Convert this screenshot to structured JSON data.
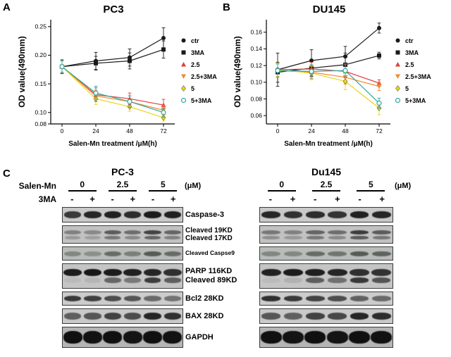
{
  "chart_data": [
    {
      "type": "line",
      "title": "PC3",
      "xlabel": "Salen-Mn treatment /μM(h)",
      "ylabel": "OD value(490mm)",
      "x": [
        0,
        24,
        48,
        72
      ],
      "xticks": [
        0,
        24,
        48,
        72
      ],
      "yticks": [
        0.08,
        0.1,
        0.15,
        0.2,
        0.25
      ],
      "xlim": [
        -8,
        80
      ],
      "ylim": [
        0.08,
        0.262
      ],
      "grid": false,
      "legend_position": "right",
      "series": [
        {
          "name": "ctr",
          "marker": "circle",
          "color": "#1a1a1a",
          "values": [
            0.18,
            0.19,
            0.196,
            0.23
          ],
          "err": [
            0.012,
            0.015,
            0.015,
            0.018
          ]
        },
        {
          "name": "3MA",
          "marker": "square",
          "color": "#1a1a1a",
          "values": [
            0.18,
            0.186,
            0.19,
            0.21
          ],
          "err": [
            0.01,
            0.012,
            0.014,
            0.015
          ]
        },
        {
          "name": "2.5",
          "marker": "triangle-up",
          "color": "#e23b3b",
          "values": [
            0.18,
            0.131,
            0.124,
            0.113
          ],
          "err": [
            0.01,
            0.012,
            0.01,
            0.01
          ]
        },
        {
          "name": "2.5+3MA",
          "marker": "triangle-down",
          "color": "#f08a2c",
          "values": [
            0.18,
            0.129,
            0.119,
            0.104
          ],
          "err": [
            0.01,
            0.01,
            0.01,
            0.008
          ]
        },
        {
          "name": "5",
          "marker": "diamond",
          "color": "#e8d51e",
          "values": [
            0.18,
            0.124,
            0.11,
            0.091
          ],
          "err": [
            0.01,
            0.01,
            0.008,
            0.006
          ]
        },
        {
          "name": "5+3MA",
          "marker": "circle-open",
          "color": "#2fa8a0",
          "values": [
            0.18,
            0.134,
            0.119,
            0.1
          ],
          "err": [
            0.01,
            0.012,
            0.01,
            0.008
          ]
        }
      ]
    },
    {
      "type": "line",
      "title": "DU145",
      "xlabel": "Salen-Mn treatment /μM(h)",
      "ylabel": "OD value(490mm)",
      "x": [
        0,
        24,
        48,
        72
      ],
      "xticks": [
        0,
        24,
        48,
        72
      ],
      "yticks": [
        0.06,
        0.08,
        0.1,
        0.12,
        0.14,
        0.16
      ],
      "xlim": [
        -8,
        80
      ],
      "ylim": [
        0.05,
        0.175
      ],
      "grid": false,
      "legend_position": "right",
      "series": [
        {
          "name": "ctr",
          "marker": "circle",
          "color": "#1a1a1a",
          "values": [
            0.115,
            0.126,
            0.131,
            0.165
          ],
          "err": [
            0.02,
            0.013,
            0.012,
            0.006
          ]
        },
        {
          "name": "3MA",
          "marker": "square",
          "color": "#1a1a1a",
          "values": [
            0.112,
            0.117,
            0.121,
            0.132
          ],
          "err": [
            0.012,
            0.01,
            0.014,
            0.004
          ]
        },
        {
          "name": "2.5",
          "marker": "triangle-up",
          "color": "#e23b3b",
          "values": [
            0.115,
            0.116,
            0.113,
            0.099
          ],
          "err": [
            0.008,
            0.008,
            0.008,
            0.004
          ]
        },
        {
          "name": "2.5+3MA",
          "marker": "triangle-down",
          "color": "#f08a2c",
          "values": [
            0.114,
            0.112,
            0.106,
            0.095
          ],
          "err": [
            0.008,
            0.008,
            0.008,
            0.005
          ]
        },
        {
          "name": "5",
          "marker": "diamond",
          "color": "#e8d51e",
          "values": [
            0.115,
            0.111,
            0.101,
            0.069
          ],
          "err": [
            0.008,
            0.008,
            0.01,
            0.008
          ]
        },
        {
          "name": "5+3MA",
          "marker": "circle-open",
          "color": "#2fa8a0",
          "values": [
            0.114,
            0.113,
            0.114,
            0.075
          ],
          "err": [
            0.008,
            0.008,
            0.008,
            0.006
          ]
        }
      ]
    }
  ],
  "panel_a": {
    "marker": "A"
  },
  "panel_b": {
    "marker": "B"
  },
  "panel_c": {
    "marker": "C",
    "left_group_title": "PC-3",
    "right_group_title": "Du145",
    "salen_label": "Salen-Mn",
    "doses": [
      "0",
      "2.5",
      "5"
    ],
    "unit_label": "(μM)",
    "inhibitor_label": "3MA",
    "lane_signs": [
      "-",
      "+",
      "-",
      "+",
      "-",
      "+"
    ],
    "rows": [
      {
        "labels": [
          "Caspase-3"
        ],
        "label_size": "normal",
        "strip_height": 22,
        "bg": "#c9c9c9",
        "bands": [
          {
            "h": 0.5,
            "w": 0.86,
            "left": [
              0.75,
              0.85,
              0.88,
              0.82,
              0.9,
              0.88
            ],
            "right": [
              0.85,
              0.8,
              0.82,
              0.78,
              0.88,
              0.85
            ]
          }
        ]
      },
      {
        "labels": [
          "Cleaved 19KD",
          "Cleaved 17KD"
        ],
        "label_size": "small",
        "strip_height": 26,
        "bg": "#c2c2c2",
        "bands": [
          {
            "h": 0.26,
            "w": 0.86,
            "left": [
              0.35,
              0.3,
              0.55,
              0.45,
              0.68,
              0.5
            ],
            "right": [
              0.4,
              0.35,
              0.5,
              0.45,
              0.72,
              0.55
            ]
          },
          {
            "h": 0.2,
            "w": 0.8,
            "left": [
              0.22,
              0.18,
              0.4,
              0.3,
              0.5,
              0.35
            ],
            "right": [
              0.28,
              0.22,
              0.4,
              0.3,
              0.55,
              0.4
            ]
          }
        ]
      },
      {
        "labels": [
          "Cleaved Caspse9"
        ],
        "label_size": "xsmall",
        "strip_height": 20,
        "bg": "#b9bdb9",
        "bands": [
          {
            "h": 0.4,
            "w": 0.85,
            "left": [
              0.3,
              0.25,
              0.45,
              0.35,
              0.55,
              0.45
            ],
            "right": [
              0.3,
              0.3,
              0.45,
              0.4,
              0.55,
              0.5
            ]
          }
        ]
      },
      {
        "labels": [
          "PARP 116KD",
          "Cleaved 89KD"
        ],
        "label_size": "normal",
        "strip_height": 36,
        "bg": "#c5c5c5",
        "bands": [
          {
            "h": 0.3,
            "w": 0.9,
            "left": [
              0.9,
              0.92,
              0.9,
              0.88,
              0.85,
              0.8
            ],
            "right": [
              0.88,
              0.9,
              0.88,
              0.85,
              0.8,
              0.78
            ]
          },
          {
            "h": 0.22,
            "w": 0.84,
            "left": [
              0.05,
              0.08,
              0.5,
              0.4,
              0.72,
              0.55
            ],
            "right": [
              0.05,
              0.1,
              0.55,
              0.45,
              0.75,
              0.6
            ]
          }
        ]
      },
      {
        "labels": [
          "Bcl2 28KD"
        ],
        "label_size": "normal",
        "strip_height": 20,
        "bg": "#cccccc",
        "bands": [
          {
            "h": 0.45,
            "w": 0.86,
            "left": [
              0.75,
              0.72,
              0.65,
              0.6,
              0.5,
              0.45
            ],
            "right": [
              0.8,
              0.75,
              0.7,
              0.65,
              0.55,
              0.5
            ]
          }
        ]
      },
      {
        "labels": [
          "BAX 28KD"
        ],
        "label_size": "normal",
        "strip_height": 22,
        "bg": "#c9c9c9",
        "bands": [
          {
            "h": 0.5,
            "w": 0.86,
            "left": [
              0.55,
              0.6,
              0.7,
              0.65,
              0.85,
              0.8
            ],
            "right": [
              0.6,
              0.55,
              0.7,
              0.68,
              0.85,
              0.82
            ]
          }
        ]
      },
      {
        "labels": [
          "GAPDH"
        ],
        "label_size": "normal",
        "strip_height": 30,
        "bg": "#b5b5b5",
        "bands": [
          {
            "h": 0.62,
            "w": 0.95,
            "left": [
              0.96,
              0.95,
              0.96,
              0.94,
              0.96,
              0.95
            ],
            "right": [
              0.96,
              0.94,
              0.96,
              0.94,
              0.96,
              0.95
            ]
          }
        ]
      }
    ]
  }
}
